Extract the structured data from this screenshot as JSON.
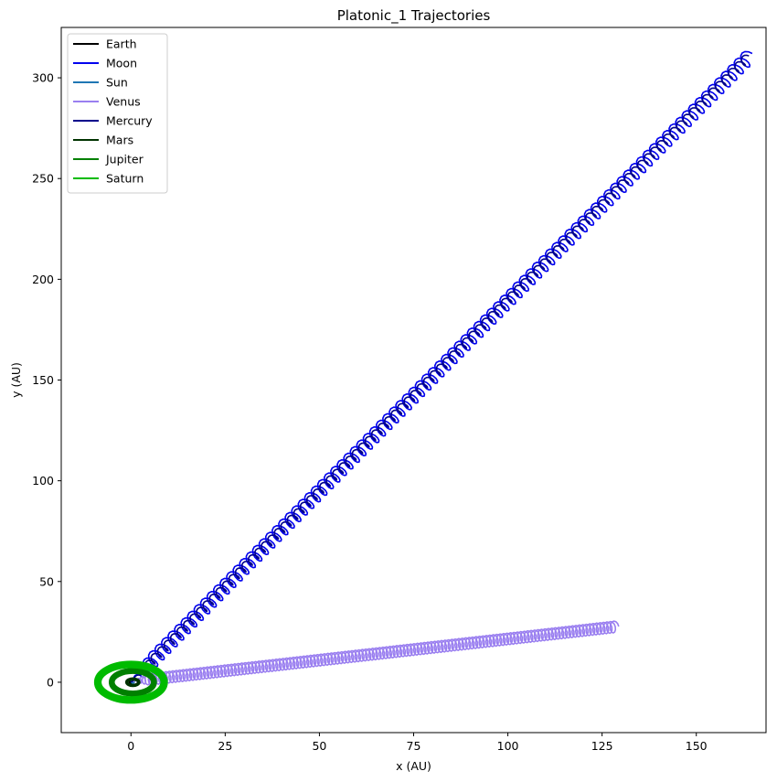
{
  "chart_data": {
    "type": "line",
    "title": "Platonic_1 Trajectories",
    "xlabel": "x (AU)",
    "ylabel": "y (AU)",
    "xlim": [
      -18.5,
      168.5
    ],
    "ylim": [
      -25,
      325
    ],
    "xticks": [
      0,
      25,
      50,
      75,
      100,
      125,
      150
    ],
    "yticks": [
      0,
      50,
      100,
      150,
      200,
      250,
      300
    ],
    "grid": false,
    "legend_position": "top-left",
    "series": [
      {
        "name": "Earth",
        "color": "#000000",
        "kind": "point",
        "x": [
          0
        ],
        "y": [
          0
        ]
      },
      {
        "name": "Moon",
        "color": "#0000ee",
        "kind": "spiral-line",
        "start": [
          0,
          0
        ],
        "end": [
          164,
          310.5
        ],
        "loops": 95,
        "amp": 0.9
      },
      {
        "name": "Sun",
        "color": "#1f77b4",
        "kind": "point",
        "x": [
          0.5
        ],
        "y": [
          0.3
        ]
      },
      {
        "name": "Venus",
        "color": "#9a7ff0",
        "kind": "spiral-line",
        "start": [
          0.5,
          0.5
        ],
        "end": [
          128.5,
          27.5
        ],
        "loops": 140,
        "amp": 0.7
      },
      {
        "name": "Mercury",
        "color": "#00008b",
        "kind": "spiral-line",
        "start": [
          0,
          0
        ],
        "end": [
          163.5,
          310
        ],
        "loops": 95,
        "amp": 0.5
      },
      {
        "name": "Mars",
        "color": "#003300",
        "kind": "ring",
        "cx": 0.5,
        "cy": 0,
        "r": 1.6,
        "thickness": 0.9
      },
      {
        "name": "Jupiter",
        "color": "#008000",
        "kind": "ring",
        "cx": 0.5,
        "cy": 0,
        "r": 5.6,
        "thickness": 1.6
      },
      {
        "name": "Saturn",
        "color": "#00bb00",
        "kind": "ring",
        "cx": 0,
        "cy": 0,
        "r": 8.8,
        "thickness": 2.0
      }
    ]
  }
}
